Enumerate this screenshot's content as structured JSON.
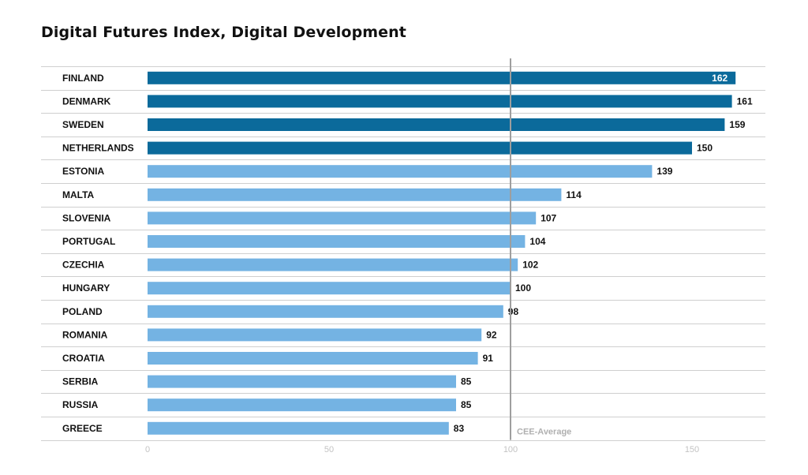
{
  "title": "Digital Futures Index, Digital Development",
  "colors": {
    "highlight": "#0b6a9b",
    "default": "#74b3e3",
    "gridline": "#cfcfcf",
    "reference_line": "#9e9e9e",
    "tick_text": "#c3c3c3"
  },
  "chart_data": {
    "type": "bar",
    "orientation": "horizontal",
    "title": "Digital Futures Index, Digital Development",
    "xlabel": "",
    "ylabel": "",
    "categories": [
      "FINLAND",
      "DENMARK",
      "SWEDEN",
      "NETHERLANDS",
      "ESTONIA",
      "MALTA",
      "SLOVENIA",
      "PORTUGAL",
      "CZECHIA",
      "HUNGARY",
      "POLAND",
      "ROMANIA",
      "CROATIA",
      "SERBIA",
      "RUSSIA",
      "GREECE"
    ],
    "values": [
      162,
      161,
      159,
      150,
      139,
      114,
      107,
      104,
      102,
      100,
      98,
      92,
      91,
      85,
      85,
      83
    ],
    "highlighted": [
      "FINLAND",
      "DENMARK",
      "SWEDEN",
      "NETHERLANDS"
    ],
    "xlim": [
      0,
      170
    ],
    "xticks": [
      0,
      50,
      100,
      150
    ],
    "reference_line": {
      "value": 100,
      "label": "CEE-Average"
    },
    "grid": "horizontal separators between rows",
    "legend": "none"
  }
}
